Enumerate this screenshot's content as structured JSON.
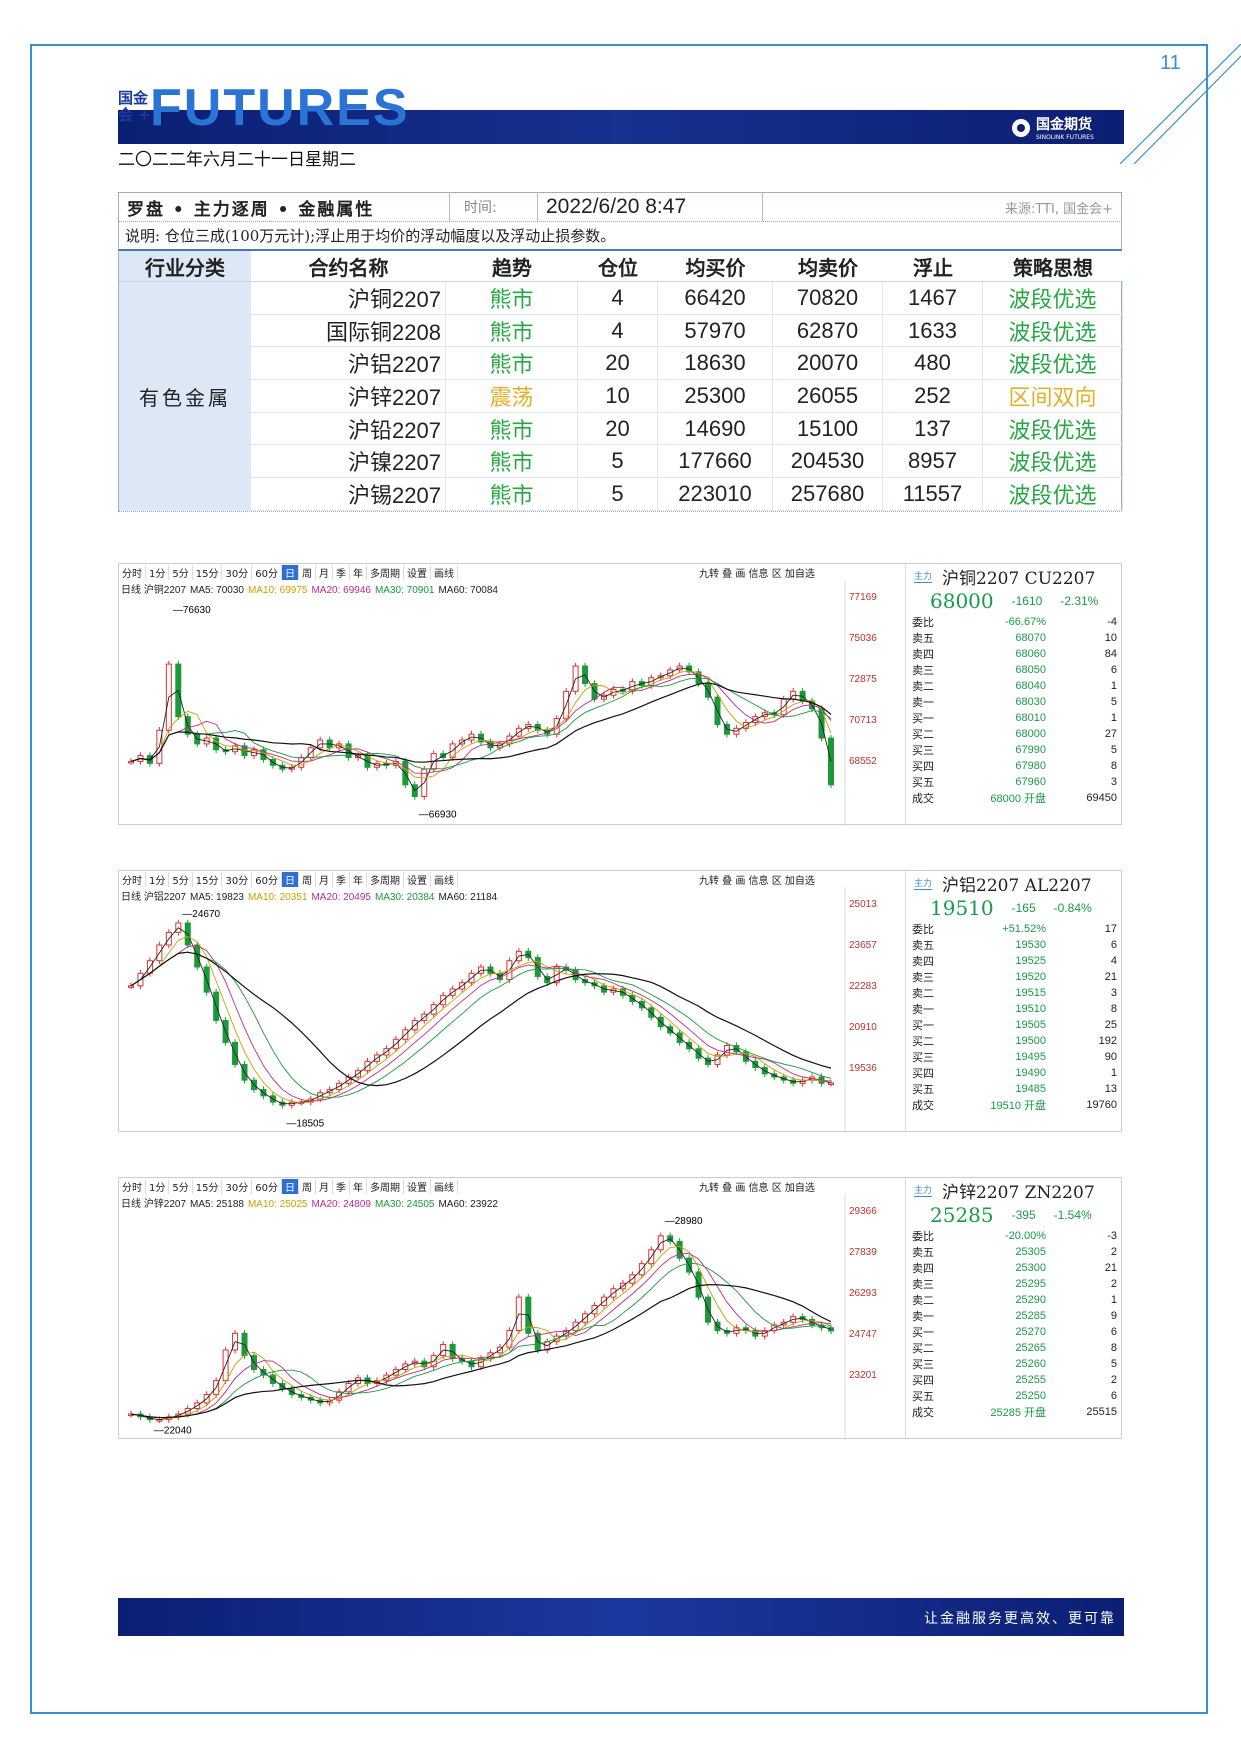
{
  "page_number": "11",
  "header": {
    "logo_small": "国金\n会 +",
    "logo_futures": "FUTURES",
    "brand": "国金期货",
    "brand_sub": "SINOLINK FUTURES",
    "date": "二〇二二年六月二十一日星期二"
  },
  "table": {
    "title": "罗盘 • 主力逐周 • 金融属性",
    "time_label": "时间:",
    "time_value": "2022/6/20 8:47",
    "source": "来源:TTI, 国金会+",
    "note": "说明: 仓位三成(100万元计);浮止用于均价的浮动幅度以及浮动止损参数。",
    "headers": [
      "行业分类",
      "合约名称",
      "趋势",
      "仓位",
      "均买价",
      "均卖价",
      "浮止",
      "策略思想"
    ],
    "category": "有色金属",
    "rows": [
      {
        "name": "沪铜2207",
        "trend": "熊市",
        "pos": "4",
        "buy": "66420",
        "sell": "70820",
        "stop": "1467",
        "strategy": "波段优选",
        "trend_type": "bear",
        "strat_type": "a"
      },
      {
        "name": "国际铜2208",
        "trend": "熊市",
        "pos": "4",
        "buy": "57970",
        "sell": "62870",
        "stop": "1633",
        "strategy": "波段优选",
        "trend_type": "bear",
        "strat_type": "a"
      },
      {
        "name": "沪铝2207",
        "trend": "熊市",
        "pos": "20",
        "buy": "18630",
        "sell": "20070",
        "stop": "480",
        "strategy": "波段优选",
        "trend_type": "bear",
        "strat_type": "a"
      },
      {
        "name": "沪锌2207",
        "trend": "震荡",
        "pos": "10",
        "buy": "25300",
        "sell": "26055",
        "stop": "252",
        "strategy": "区间双向",
        "trend_type": "osc",
        "strat_type": "b"
      },
      {
        "name": "沪铅2207",
        "trend": "熊市",
        "pos": "20",
        "buy": "14690",
        "sell": "15100",
        "stop": "137",
        "strategy": "波段优选",
        "trend_type": "bear",
        "strat_type": "a"
      },
      {
        "name": "沪镍2207",
        "trend": "熊市",
        "pos": "5",
        "buy": "177660",
        "sell": "204530",
        "stop": "8957",
        "strategy": "波段优选",
        "trend_type": "bear",
        "strat_type": "a"
      },
      {
        "name": "沪锡2207",
        "trend": "熊市",
        "pos": "5",
        "buy": "223010",
        "sell": "257680",
        "stop": "11557",
        "strategy": "波段优选",
        "trend_type": "bear",
        "strat_type": "a"
      }
    ]
  },
  "colors": {
    "bear": "#27a844",
    "osc": "#e1b12c",
    "up": "#e03030",
    "down": "#1a9a3a"
  },
  "panels": [
    {
      "toolbar": [
        "分时",
        "1分",
        "5分",
        "15分",
        "30分",
        "60分",
        "日",
        "周",
        "月",
        "季",
        "年",
        "多周期",
        "设置",
        "画线"
      ],
      "toolbar_right": "九转 叠 画 信息 区 加自选",
      "ma_prefix": "日线 沪铜2207",
      "ma": [
        {
          "label": "MA5: 70030",
          "color": "#222"
        },
        {
          "label": "MA10: 69975",
          "color": "#c9a000"
        },
        {
          "label": "MA20: 69946",
          "color": "#c02a8a"
        },
        {
          "label": "MA30: 70901",
          "color": "#1a9a3a"
        },
        {
          "label": "MA60: 70084",
          "color": "#222"
        }
      ],
      "tag": "主力",
      "title": "沪铜2207 CU2207",
      "price": "68000",
      "chg": "-1610",
      "chg_pct": "-2.31%",
      "ratio_label": "委比",
      "ratio": "-66.67%",
      "ratio_v": "-4",
      "book": [
        [
          "卖五",
          "68070",
          "10"
        ],
        [
          "卖四",
          "68060",
          "84"
        ],
        [
          "卖三",
          "68050",
          "6"
        ],
        [
          "卖二",
          "68040",
          "1"
        ],
        [
          "卖一",
          "68030",
          "5"
        ],
        [
          "买一",
          "68010",
          "1"
        ],
        [
          "买二",
          "68000",
          "27"
        ],
        [
          "买三",
          "67990",
          "5"
        ],
        [
          "买四",
          "67980",
          "8"
        ],
        [
          "买五",
          "67960",
          "3"
        ]
      ],
      "last": [
        "成交",
        "68000 开盘",
        "69450"
      ],
      "axis": [
        "77169",
        "75036",
        "72875",
        "70713",
        "68552"
      ],
      "hi_label": "76630",
      "lo_label": "66930",
      "chart_data": {
        "type": "line",
        "title": "沪铜2207 CU2207",
        "ylim": [
          66500,
          77800
        ],
        "high": 76630,
        "low": 66930,
        "close": [
          69200,
          69500,
          69100,
          70800,
          74200,
          71500,
          70600,
          70100,
          70400,
          69800,
          69700,
          70000,
          69500,
          69800,
          69300,
          69000,
          68800,
          68900,
          69400,
          69900,
          70300,
          69900,
          70100,
          69400,
          69500,
          68900,
          69100,
          69000,
          69200,
          68000,
          67400,
          68800,
          69600,
          69400,
          70100,
          70300,
          70600,
          70200,
          69900,
          70100,
          70500,
          70900,
          71100,
          70800,
          70600,
          71400,
          72800,
          74100,
          73200,
          72400,
          72600,
          72900,
          72800,
          73300,
          73100,
          73500,
          73600,
          73900,
          74100,
          73800,
          73200,
          72500,
          71100,
          70600,
          70900,
          71200,
          71500,
          71700,
          71600,
          72400,
          72800,
          72300,
          71900,
          70400,
          68000
        ]
      }
    },
    {
      "toolbar": [
        "分时",
        "1分",
        "5分",
        "15分",
        "30分",
        "60分",
        "日",
        "周",
        "月",
        "季",
        "年",
        "多周期",
        "设置",
        "画线"
      ],
      "toolbar_right": "九转 叠 画 信息 区 加自选",
      "ma_prefix": "日线 沪铝2207",
      "ma": [
        {
          "label": "MA5: 19823",
          "color": "#222"
        },
        {
          "label": "MA10: 20351",
          "color": "#c9a000"
        },
        {
          "label": "MA20: 20495",
          "color": "#c02a8a"
        },
        {
          "label": "MA30: 20384",
          "color": "#1a9a3a"
        },
        {
          "label": "MA60: 21184",
          "color": "#222"
        }
      ],
      "tag": "主力",
      "title": "沪铝2207 AL2207",
      "price": "19510",
      "chg": "-165",
      "chg_pct": "-0.84%",
      "ratio_label": "委比",
      "ratio": "+51.52%",
      "ratio_v": "17",
      "book": [
        [
          "卖五",
          "19530",
          "6"
        ],
        [
          "卖四",
          "19525",
          "4"
        ],
        [
          "卖三",
          "19520",
          "21"
        ],
        [
          "卖二",
          "19515",
          "3"
        ],
        [
          "卖一",
          "19510",
          "8"
        ],
        [
          "买一",
          "19505",
          "25"
        ],
        [
          "买二",
          "19500",
          "192"
        ],
        [
          "买三",
          "19495",
          "90"
        ],
        [
          "买四",
          "19490",
          "1"
        ],
        [
          "买五",
          "19485",
          "13"
        ]
      ],
      "last": [
        "成交",
        "19510 开盘",
        "19760"
      ],
      "axis": [
        "25013",
        "23657",
        "22283",
        "20910",
        "19536"
      ],
      "hi_label": "24670",
      "lo_label": "18505",
      "chart_data": {
        "type": "line",
        "title": "沪铝2207 AL2207",
        "ylim": [
          18300,
          25300
        ],
        "high": 24670,
        "low": 18505,
        "close": [
          22600,
          23000,
          23400,
          23900,
          24300,
          24600,
          23900,
          23200,
          22400,
          21500,
          20800,
          20100,
          19600,
          19300,
          19100,
          18900,
          18800,
          18900,
          18900,
          19000,
          19200,
          19300,
          19500,
          19700,
          19900,
          20200,
          20400,
          20600,
          20900,
          21200,
          21500,
          21700,
          22000,
          22300,
          22500,
          22700,
          23000,
          23200,
          23000,
          22800,
          23400,
          23700,
          23500,
          22900,
          22700,
          23200,
          23100,
          22800,
          22700,
          22600,
          22400,
          22500,
          22300,
          22100,
          21900,
          21600,
          21300,
          21100,
          20800,
          20600,
          20300,
          20100,
          20400,
          20700,
          20500,
          20200,
          20000,
          19800,
          19700,
          19600,
          19500,
          19600,
          19700,
          19500,
          19510
        ]
      }
    },
    {
      "toolbar": [
        "分时",
        "1分",
        "5分",
        "15分",
        "30分",
        "60分",
        "日",
        "周",
        "月",
        "季",
        "年",
        "多周期",
        "设置",
        "画线"
      ],
      "toolbar_right": "九转 叠 画 信息 区 加自选",
      "ma_prefix": "日线 沪锌2207",
      "ma": [
        {
          "label": "MA5: 25188",
          "color": "#222"
        },
        {
          "label": "MA10: 25025",
          "color": "#c9a000"
        },
        {
          "label": "MA20: 24809",
          "color": "#c02a8a"
        },
        {
          "label": "MA30: 24505",
          "color": "#1a9a3a"
        },
        {
          "label": "MA60: 23922",
          "color": "#222"
        }
      ],
      "tag": "主力",
      "title": "沪锌2207 ZN2207",
      "price": "25285",
      "chg": "-395",
      "chg_pct": "-1.54%",
      "ratio_label": "委比",
      "ratio": "-20.00%",
      "ratio_v": "-3",
      "book": [
        [
          "卖五",
          "25305",
          "2"
        ],
        [
          "卖四",
          "25300",
          "21"
        ],
        [
          "卖三",
          "25295",
          "2"
        ],
        [
          "卖二",
          "25290",
          "1"
        ],
        [
          "卖一",
          "25285",
          "9"
        ],
        [
          "买一",
          "25270",
          "6"
        ],
        [
          "买二",
          "25265",
          "8"
        ],
        [
          "买三",
          "25260",
          "5"
        ],
        [
          "买四",
          "25255",
          "2"
        ],
        [
          "买五",
          "25250",
          "6"
        ]
      ],
      "last": [
        "成交",
        "25285 开盘",
        "25515"
      ],
      "axis": [
        "29366",
        "27839",
        "26293",
        "24747",
        "23201"
      ],
      "hi_label": "28980",
      "lo_label": "22040",
      "chart_data": {
        "type": "line",
        "title": "沪锌2207 ZN2207",
        "ylim": [
          21800,
          29700
        ],
        "high": 28980,
        "low": 22040,
        "close": [
          22300,
          22200,
          22100,
          22100,
          22200,
          22300,
          22500,
          22700,
          23000,
          23500,
          24600,
          25200,
          24400,
          23900,
          23700,
          23400,
          23200,
          23000,
          22900,
          22800,
          22700,
          22800,
          23100,
          23400,
          23600,
          23400,
          23500,
          23700,
          23900,
          24100,
          24200,
          24000,
          24400,
          24800,
          24300,
          24200,
          24000,
          24300,
          24500,
          24700,
          25300,
          26500,
          25200,
          24600,
          24900,
          25100,
          25300,
          25600,
          25900,
          26200,
          26500,
          26800,
          27000,
          27300,
          27700,
          28200,
          28700,
          28500,
          27900,
          27400,
          26500,
          25600,
          25300,
          25200,
          25400,
          25300,
          25100,
          25300,
          25500,
          25600,
          25800,
          25700,
          25500,
          25400,
          25285
        ]
      }
    }
  ],
  "footer": "让金融服务更高效、更可靠"
}
